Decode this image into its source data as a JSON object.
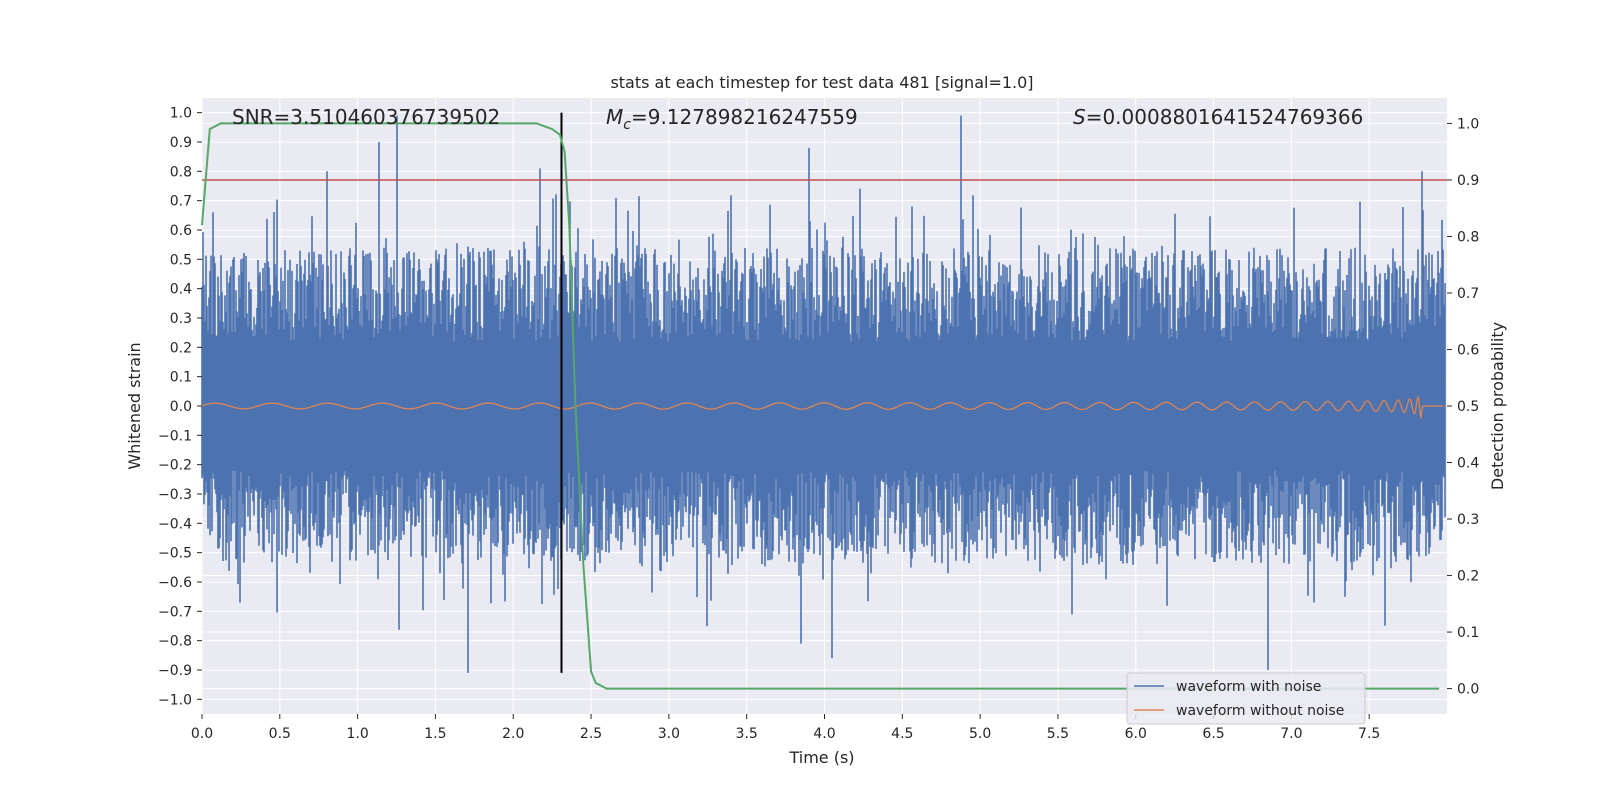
{
  "chart_data": {
    "type": "line",
    "title": "stats at each timestep for test data 481 [signal=1.0]",
    "xlabel": "Time (s)",
    "ylabel_left": "Whitened strain",
    "ylabel_right": "Detection probability",
    "xlim": [
      0.0,
      8.0
    ],
    "ylim_left": [
      -1.05,
      1.05
    ],
    "ylim_right": [
      -0.045,
      1.045
    ],
    "grid": true,
    "legend_placement": "lower right",
    "x_ticks": [
      "0.0",
      "0.5",
      "1.0",
      "1.5",
      "2.0",
      "2.5",
      "3.0",
      "3.5",
      "4.0",
      "4.5",
      "5.0",
      "5.5",
      "6.0",
      "6.5",
      "7.0",
      "7.5"
    ],
    "y_ticks_left": [
      "1.0",
      "0.9",
      "0.8",
      "0.7",
      "0.6",
      "0.5",
      "0.4",
      "0.3",
      "0.2",
      "0.1",
      "0.0",
      "−0.1",
      "−0.2",
      "−0.3",
      "−0.4",
      "−0.5",
      "−0.6",
      "−0.7",
      "−0.8",
      "−0.9",
      "−1.0"
    ],
    "y_ticks_right": [
      "1.0",
      "0.9",
      "0.8",
      "0.7",
      "0.6",
      "0.5",
      "0.4",
      "0.3",
      "0.2",
      "0.1",
      "0.0"
    ],
    "annotations": {
      "snr": "SNR=3.510460376739502",
      "mc_symbol": "M",
      "mc_sub": "c",
      "mc_value": "=9.127898216247559",
      "s_symbol": "S",
      "s_value": "=0.0008801641524769366"
    },
    "series": [
      {
        "name": "waveform with noise",
        "axis": "left",
        "color": "#4c72b0",
        "style": "noise",
        "x_range": [
          0.0,
          7.99
        ],
        "approx_amplitude_envelope": [
          -0.91,
          0.99
        ],
        "peaks": [
          {
            "x": 1.25,
            "y": 1.0
          },
          {
            "x": 1.14,
            "y": 0.9
          },
          {
            "x": 4.88,
            "y": 0.99
          },
          {
            "x": 3.9,
            "y": 0.88
          },
          {
            "x": 1.71,
            "y": -0.91
          },
          {
            "x": 6.85,
            "y": -0.9
          },
          {
            "x": 4.05,
            "y": -0.86
          },
          {
            "x": 7.84,
            "y": 0.8
          },
          {
            "x": 0.8,
            "y": 0.8
          },
          {
            "x": 2.17,
            "y": 0.81
          },
          {
            "x": 3.85,
            "y": -0.81
          }
        ]
      },
      {
        "name": "waveform without noise",
        "axis": "left",
        "color": "#dd8452",
        "style": "chirp",
        "x_range": [
          0.0,
          7.98
        ],
        "merger_time": 7.84,
        "peak_amplitude": 0.14
      },
      {
        "axis": "right",
        "color": "#55a868",
        "style": "line",
        "x": [
          0.0,
          0.05,
          0.12,
          0.2,
          0.5,
          1.0,
          1.5,
          2.0,
          2.15,
          2.25,
          2.3,
          2.33,
          2.36,
          2.4,
          2.45,
          2.5,
          2.53,
          2.6,
          3.0,
          4.0,
          5.0,
          6.0,
          7.0,
          7.95
        ],
        "values": [
          0.82,
          0.99,
          1.0,
          1.0,
          1.0,
          1.0,
          1.0,
          1.0,
          1.0,
          0.99,
          0.98,
          0.95,
          0.82,
          0.5,
          0.22,
          0.03,
          0.01,
          0.0,
          0.0,
          0.0,
          0.0,
          0.0,
          0.0,
          0.0
        ]
      }
    ],
    "reference_lines": [
      {
        "type": "horizontal",
        "axis": "right",
        "y": 0.9,
        "color": "#c44e52"
      },
      {
        "type": "vertical",
        "axis": "left",
        "x": 2.31,
        "y_range": [
          -0.91,
          1.0
        ],
        "color": "#000000"
      }
    ]
  }
}
